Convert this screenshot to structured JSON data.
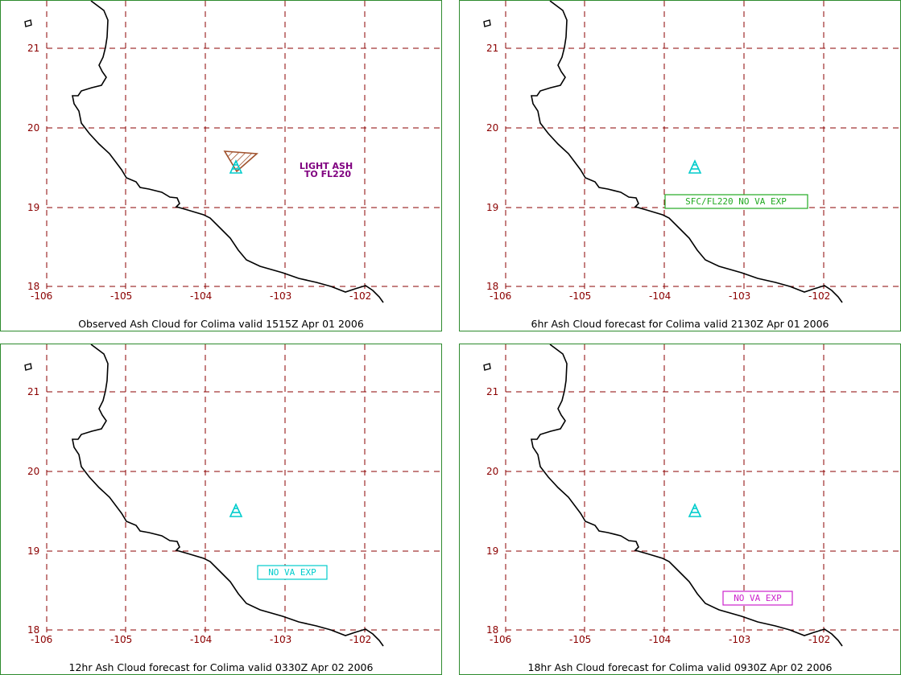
{
  "panels": [
    {
      "caption": "Observed Ash Cloud for Colima valid 1515Z Apr 01 2006",
      "lat_labels": [
        "21",
        "20",
        "19",
        "18"
      ],
      "lon_labels": [
        "-106",
        "-105",
        "-104",
        "-103",
        "-102"
      ],
      "annotation": {
        "line1": "LIGHT ASH",
        "line2": "TO FL220",
        "color": "#800080"
      },
      "ash_cloud_hatch_color": "#a0522d",
      "volcano_symbol_color": "#00cccc"
    },
    {
      "caption": "6hr Ash Cloud forecast for Colima valid 2130Z Apr 01 2006",
      "lat_labels": [
        "21",
        "20",
        "19",
        "18"
      ],
      "lon_labels": [
        "-106",
        "-105",
        "-104",
        "-103",
        "-102"
      ],
      "box_label": "SFC/FL220 NO VA EXP",
      "box_color": "#22aa22",
      "volcano_symbol_color": "#00cccc"
    },
    {
      "caption": "12hr Ash Cloud forecast for Colima valid 0330Z Apr 02 2006",
      "lat_labels": [
        "21",
        "20",
        "19",
        "18"
      ],
      "lon_labels": [
        "-106",
        "-105",
        "-104",
        "-103",
        "-102"
      ],
      "box_label": "NO VA EXP",
      "box_color": "#00cccc",
      "volcano_symbol_color": "#00cccc"
    },
    {
      "caption": "18hr Ash Cloud forecast for Colima valid 0930Z Apr 02 2006",
      "lat_labels": [
        "21",
        "20",
        "19",
        "18"
      ],
      "lon_labels": [
        "-106",
        "-105",
        "-104",
        "-103",
        "-102"
      ],
      "box_label": "NO VA EXP",
      "box_color": "#cc22cc",
      "volcano_symbol_color": "#00cccc"
    }
  ],
  "colors": {
    "grid": "#8b0000",
    "coastline": "#000000",
    "panel_border": "#2e8b2e"
  }
}
